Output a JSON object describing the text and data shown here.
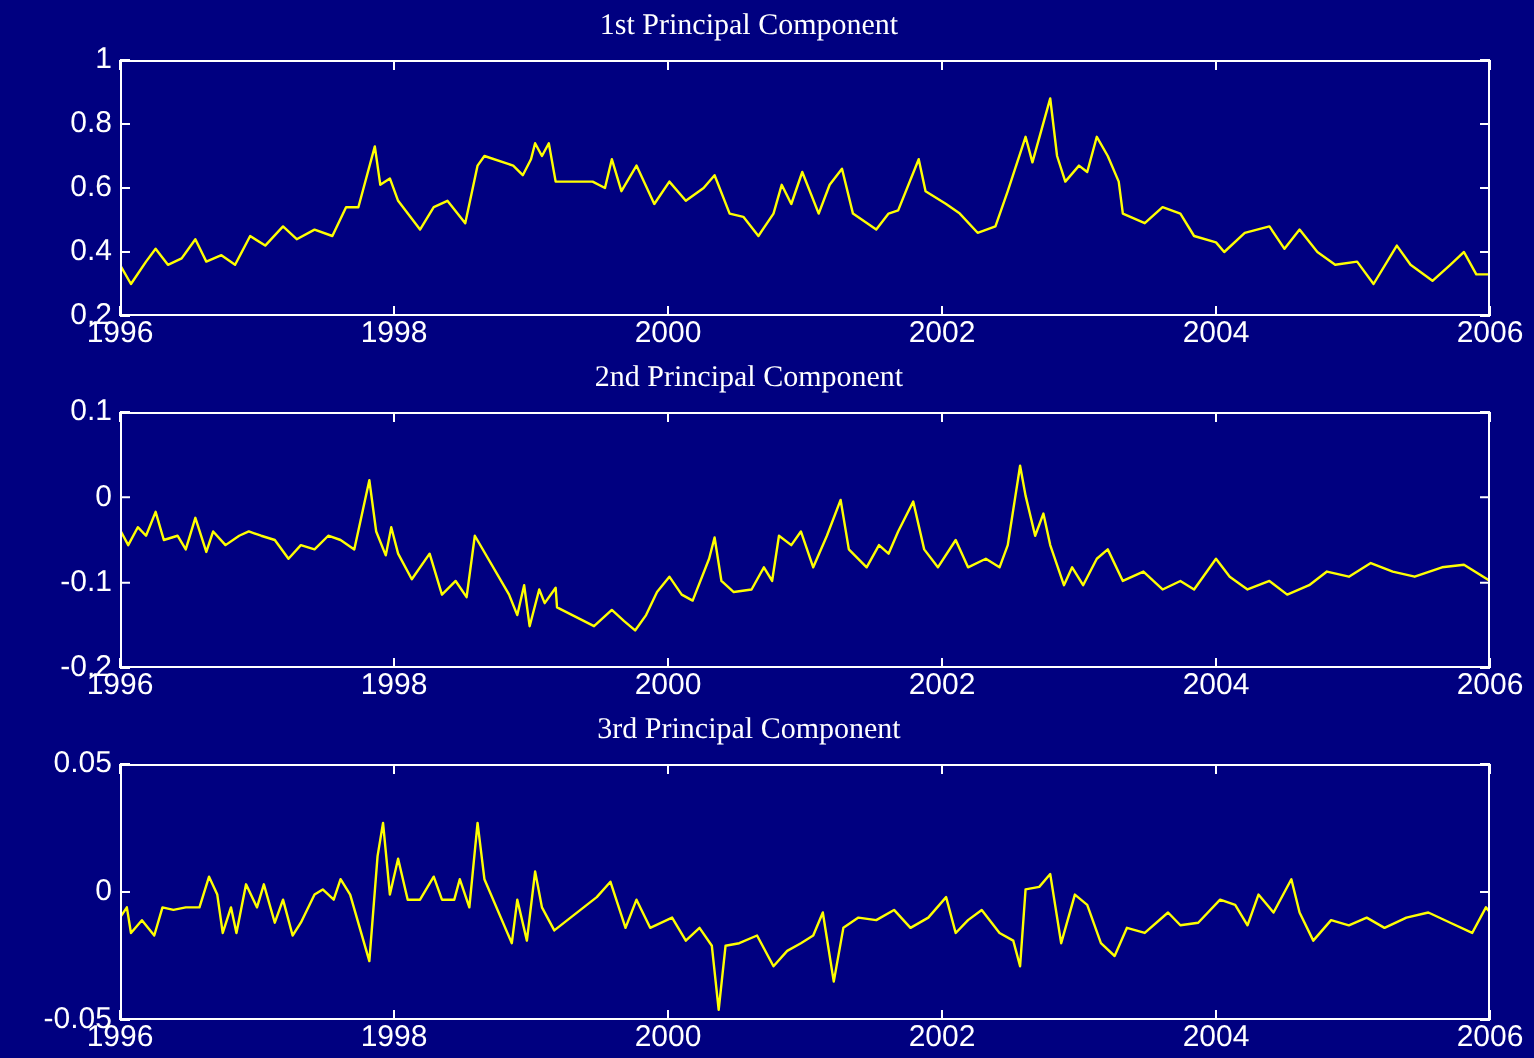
{
  "chart_data": [
    {
      "type": "line",
      "title": "1st Principal Component",
      "xlim": [
        1996,
        2006
      ],
      "xticks": [
        1996,
        1998,
        2000,
        2002,
        2004,
        2006
      ],
      "ylim": [
        0.2,
        1
      ],
      "yticks": [
        0.2,
        0.4,
        0.6,
        0.8,
        1
      ],
      "x": [
        1996.0,
        1996.08,
        1996.19,
        1996.26,
        1996.35,
        1996.45,
        1996.55,
        1996.63,
        1996.74,
        1996.84,
        1996.95,
        1997.06,
        1997.19,
        1997.29,
        1997.42,
        1997.55,
        1997.65,
        1997.74,
        1997.86,
        1997.9,
        1997.97,
        1998.03,
        1998.19,
        1998.29,
        1998.39,
        1998.52,
        1998.61,
        1998.66,
        1998.87,
        1998.94,
        1999.0,
        1999.03,
        1999.08,
        1999.13,
        1999.18,
        1999.45,
        1999.54,
        1999.59,
        1999.66,
        1999.77,
        1999.9,
        2000.01,
        2000.13,
        2000.26,
        2000.34,
        2000.45,
        2000.55,
        2000.66,
        2000.77,
        2000.83,
        2000.9,
        2000.98,
        2001.1,
        2001.18,
        2001.27,
        2001.35,
        2001.52,
        2001.61,
        2001.68,
        2001.83,
        2001.88,
        2002.03,
        2002.13,
        2002.26,
        2002.39,
        2002.48,
        2002.61,
        2002.66,
        2002.79,
        2002.84,
        2002.9,
        2003.0,
        2003.06,
        2003.13,
        2003.21,
        2003.29,
        2003.32,
        2003.48,
        2003.61,
        2003.74,
        2003.84,
        2004.0,
        2004.06,
        2004.21,
        2004.39,
        2004.5,
        2004.61,
        2004.74,
        2004.87,
        2005.03,
        2005.15,
        2005.32,
        2005.42,
        2005.58,
        2005.71,
        2005.81,
        2005.9,
        2006.0
      ],
      "series": [
        {
          "color": "#ffff00",
          "values": [
            0.36,
            0.3,
            0.37,
            0.41,
            0.36,
            0.38,
            0.44,
            0.37,
            0.39,
            0.36,
            0.45,
            0.42,
            0.48,
            0.44,
            0.47,
            0.45,
            0.54,
            0.54,
            0.73,
            0.61,
            0.63,
            0.56,
            0.47,
            0.54,
            0.56,
            0.49,
            0.67,
            0.7,
            0.67,
            0.64,
            0.69,
            0.74,
            0.7,
            0.74,
            0.62,
            0.62,
            0.6,
            0.69,
            0.59,
            0.67,
            0.55,
            0.62,
            0.56,
            0.6,
            0.64,
            0.52,
            0.51,
            0.45,
            0.52,
            0.61,
            0.55,
            0.65,
            0.52,
            0.61,
            0.66,
            0.52,
            0.47,
            0.52,
            0.53,
            0.69,
            0.59,
            0.55,
            0.52,
            0.46,
            0.48,
            0.59,
            0.76,
            0.68,
            0.88,
            0.7,
            0.62,
            0.67,
            0.65,
            0.76,
            0.7,
            0.62,
            0.52,
            0.49,
            0.54,
            0.52,
            0.45,
            0.43,
            0.4,
            0.46,
            0.48,
            0.41,
            0.47,
            0.4,
            0.36,
            0.37,
            0.3,
            0.42,
            0.36,
            0.31,
            0.36,
            0.4,
            0.33,
            0.33
          ]
        }
      ]
    },
    {
      "type": "line",
      "title": "2nd Principal Component",
      "xlim": [
        1996,
        2006
      ],
      "xticks": [
        1996,
        1998,
        2000,
        2002,
        2004,
        2006
      ],
      "ylim": [
        -0.2,
        0.1
      ],
      "yticks": [
        -0.2,
        -0.1,
        0,
        0.1
      ],
      "x": [
        1996.0,
        1996.06,
        1996.13,
        1996.19,
        1996.26,
        1996.32,
        1996.42,
        1996.48,
        1996.55,
        1996.63,
        1996.68,
        1996.77,
        1996.87,
        1996.94,
        1997.03,
        1997.13,
        1997.23,
        1997.32,
        1997.42,
        1997.52,
        1997.61,
        1997.71,
        1997.82,
        1997.87,
        1997.94,
        1997.98,
        1998.03,
        1998.13,
        1998.26,
        1998.35,
        1998.45,
        1998.53,
        1998.59,
        1998.84,
        1998.9,
        1998.95,
        1998.99,
        1999.06,
        1999.1,
        1999.18,
        1999.19,
        1999.46,
        1999.59,
        1999.68,
        1999.76,
        1999.84,
        1999.92,
        2000.01,
        2000.1,
        2000.18,
        2000.3,
        2000.34,
        2000.39,
        2000.48,
        2000.61,
        2000.7,
        2000.76,
        2000.81,
        2000.9,
        2000.97,
        2001.06,
        2001.16,
        2001.26,
        2001.32,
        2001.45,
        2001.54,
        2001.61,
        2001.68,
        2001.79,
        2001.87,
        2001.97,
        2002.1,
        2002.19,
        2002.32,
        2002.42,
        2002.48,
        2002.57,
        2002.61,
        2002.68,
        2002.74,
        2002.79,
        2002.89,
        2002.95,
        2003.03,
        2003.13,
        2003.21,
        2003.32,
        2003.47,
        2003.61,
        2003.74,
        2003.84,
        2004.0,
        2004.1,
        2004.23,
        2004.39,
        2004.52,
        2004.68,
        2004.81,
        2004.97,
        2005.13,
        2005.29,
        2005.45,
        2005.65,
        2005.81,
        2006.0
      ],
      "series": [
        {
          "color": "#ffff00",
          "values": [
            -0.038,
            -0.056,
            -0.035,
            -0.045,
            -0.017,
            -0.05,
            -0.045,
            -0.061,
            -0.024,
            -0.064,
            -0.04,
            -0.056,
            -0.045,
            -0.04,
            -0.045,
            -0.05,
            -0.072,
            -0.056,
            -0.061,
            -0.045,
            -0.05,
            -0.061,
            0.02,
            -0.04,
            -0.068,
            -0.035,
            -0.066,
            -0.096,
            -0.066,
            -0.114,
            -0.098,
            -0.117,
            -0.045,
            -0.114,
            -0.138,
            -0.103,
            -0.151,
            -0.108,
            -0.124,
            -0.106,
            -0.129,
            -0.151,
            -0.132,
            -0.145,
            -0.156,
            -0.138,
            -0.111,
            -0.093,
            -0.114,
            -0.121,
            -0.072,
            -0.047,
            -0.098,
            -0.111,
            -0.108,
            -0.082,
            -0.098,
            -0.045,
            -0.056,
            -0.04,
            -0.082,
            -0.045,
            -0.003,
            -0.061,
            -0.082,
            -0.056,
            -0.066,
            -0.04,
            -0.005,
            -0.061,
            -0.082,
            -0.05,
            -0.082,
            -0.072,
            -0.082,
            -0.056,
            0.037,
            0.002,
            -0.045,
            -0.019,
            -0.056,
            -0.103,
            -0.082,
            -0.103,
            -0.072,
            -0.061,
            -0.098,
            -0.087,
            -0.108,
            -0.098,
            -0.108,
            -0.072,
            -0.093,
            -0.108,
            -0.098,
            -0.114,
            -0.103,
            -0.087,
            -0.093,
            -0.077,
            -0.087,
            -0.093,
            -0.082,
            -0.079,
            -0.098
          ]
        }
      ]
    },
    {
      "type": "line",
      "title": "3rd Principal Component",
      "xlim": [
        1996,
        2006
      ],
      "xticks": [
        1996,
        1998,
        2000,
        2002,
        2004,
        2006
      ],
      "ylim": [
        -0.05,
        0.05
      ],
      "yticks": [
        -0.05,
        0,
        0.05
      ],
      "x": [
        1996.0,
        1996.05,
        1996.08,
        1996.16,
        1996.25,
        1996.31,
        1996.39,
        1996.48,
        1996.58,
        1996.65,
        1996.71,
        1996.75,
        1996.81,
        1996.85,
        1996.92,
        1997.0,
        1997.05,
        1997.13,
        1997.19,
        1997.26,
        1997.32,
        1997.42,
        1997.48,
        1997.56,
        1997.61,
        1997.68,
        1997.82,
        1997.88,
        1997.92,
        1997.97,
        1998.03,
        1998.1,
        1998.19,
        1998.29,
        1998.35,
        1998.44,
        1998.48,
        1998.55,
        1998.61,
        1998.66,
        1998.86,
        1998.9,
        1998.97,
        1999.03,
        1999.08,
        1999.17,
        1999.48,
        1999.58,
        1999.69,
        1999.77,
        1999.87,
        2000.03,
        2000.13,
        2000.23,
        2000.32,
        2000.37,
        2000.42,
        2000.52,
        2000.65,
        2000.77,
        2000.87,
        2000.97,
        2001.06,
        2001.13,
        2001.21,
        2001.28,
        2001.39,
        2001.52,
        2001.65,
        2001.77,
        2001.9,
        2002.03,
        2002.1,
        2002.19,
        2002.29,
        2002.42,
        2002.52,
        2002.57,
        2002.61,
        2002.71,
        2002.79,
        2002.87,
        2002.97,
        2003.06,
        2003.16,
        2003.26,
        2003.35,
        2003.48,
        2003.65,
        2003.74,
        2003.87,
        2004.03,
        2004.14,
        2004.23,
        2004.31,
        2004.42,
        2004.55,
        2004.61,
        2004.71,
        2004.84,
        2004.97,
        2005.1,
        2005.23,
        2005.39,
        2005.55,
        2005.71,
        2005.87,
        2005.97,
        2006.0
      ],
      "series": [
        {
          "color": "#ffff00",
          "values": [
            -0.01,
            -0.006,
            -0.016,
            -0.011,
            -0.017,
            -0.006,
            -0.007,
            -0.006,
            -0.006,
            0.006,
            -0.001,
            -0.016,
            -0.006,
            -0.016,
            0.003,
            -0.006,
            0.003,
            -0.012,
            -0.003,
            -0.017,
            -0.012,
            -0.001,
            0.001,
            -0.003,
            0.005,
            -0.001,
            -0.027,
            0.014,
            0.027,
            -0.001,
            0.013,
            -0.003,
            -0.003,
            0.006,
            -0.003,
            -0.003,
            0.005,
            -0.006,
            0.027,
            0.005,
            -0.02,
            -0.003,
            -0.019,
            0.008,
            -0.006,
            -0.015,
            -0.002,
            0.004,
            -0.014,
            -0.003,
            -0.014,
            -0.01,
            -0.019,
            -0.014,
            -0.021,
            -0.046,
            -0.021,
            -0.02,
            -0.017,
            -0.029,
            -0.023,
            -0.02,
            -0.017,
            -0.008,
            -0.035,
            -0.014,
            -0.01,
            -0.011,
            -0.007,
            -0.014,
            -0.01,
            -0.002,
            -0.016,
            -0.011,
            -0.007,
            -0.016,
            -0.019,
            -0.029,
            0.001,
            0.002,
            0.007,
            -0.02,
            -0.001,
            -0.005,
            -0.02,
            -0.025,
            -0.014,
            -0.016,
            -0.008,
            -0.013,
            -0.012,
            -0.003,
            -0.005,
            -0.013,
            -0.001,
            -0.008,
            0.005,
            -0.008,
            -0.019,
            -0.011,
            -0.013,
            -0.01,
            -0.014,
            -0.01,
            -0.008,
            -0.012,
            -0.016,
            -0.006,
            -0.008
          ]
        }
      ]
    }
  ]
}
